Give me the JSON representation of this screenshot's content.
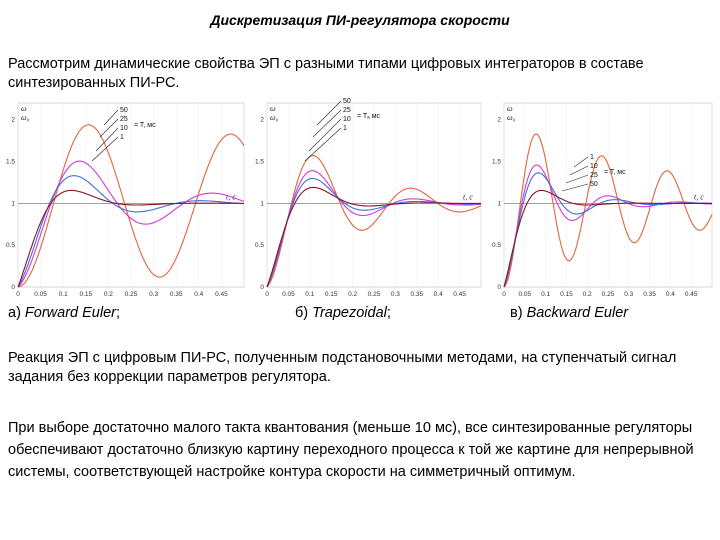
{
  "title": "Дискретизация ПИ-регулятора скорости",
  "intro": "Рассмотрим динамические свойства ЭП с разными типами цифровых интеграторов в составе синтезированных ПИ-РС.",
  "plots": [
    {
      "caption_prefix": "а) ",
      "caption_method": "Forward Euler",
      "caption_suffix": ";",
      "ylabel_top": "ω",
      "ylabel_bottom": "ω₀",
      "xlabel": "t, c",
      "legend_title": "= T, мс",
      "legend": [
        "50",
        "25",
        "10",
        "1"
      ],
      "xticks": [
        "0",
        "0.05",
        "0.1",
        "0.15",
        "0.2",
        "0.25",
        "0.3",
        "0.35",
        "0.4",
        "0.45"
      ],
      "yticks": [
        "0",
        "0.5",
        "1",
        "1.5",
        "2"
      ]
    },
    {
      "caption_prefix": "б) ",
      "caption_method": "Trapezoidal",
      "caption_suffix": ";",
      "ylabel_top": "ω",
      "ylabel_bottom": "ω₀",
      "xlabel": "t, c",
      "legend_title": "= Tₐ мс",
      "legend": [
        "50",
        "25",
        "10",
        "1"
      ],
      "xticks": [
        "0",
        "0.05",
        "0.1",
        "0.15",
        "0.2",
        "0.25",
        "0.3",
        "0.35",
        "0.4",
        "0.45"
      ],
      "yticks": [
        "0",
        "0.5",
        "1",
        "1.5",
        "2"
      ]
    },
    {
      "caption_prefix": "в) ",
      "caption_method": "Backward Euler",
      "caption_suffix": "",
      "ylabel_top": "ω",
      "ylabel_bottom": "ω₀",
      "xlabel": "t, c",
      "legend_title": "= T, мс",
      "legend": [
        "1",
        "10",
        "25",
        "50"
      ],
      "xticks": [
        "0",
        "0.05",
        "0.1",
        "0.15",
        "0.2",
        "0.25",
        "0.3",
        "0.35",
        "0.4",
        "0.45"
      ],
      "yticks": [
        "0",
        "0.5",
        "1",
        "1.5",
        "2"
      ]
    }
  ],
  "para1": "Реакция ЭП с цифровым ПИ-РС, полученным подстановочными методами, на ступенчатый сигнал задания без коррекции параметров регулятора.",
  "para2": "При выборе достаточно малого такта квантования (меньше 10 мс), все синтезированные регуляторы обеспечивают достаточно близкую картину переходного процесса к той же картине для непрерывной системы, соответствующей настройке контура скорости на симметричный оптимум.",
  "colors": {
    "orange": "#e0663a",
    "magenta": "#d43ad8",
    "blue": "#3f6fe0",
    "dark": "#8a1520"
  }
}
